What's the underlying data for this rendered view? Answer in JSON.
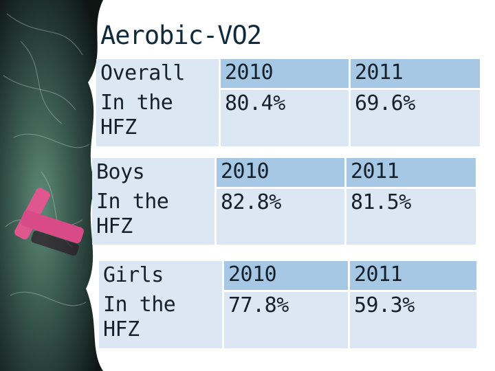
{
  "title": "Aerobic-VO2",
  "tables": [
    {
      "category": "Overall",
      "qualifier_line1": "In the",
      "qualifier_line2": "HFZ",
      "year1": "2010",
      "value1": "80.4%",
      "year2": "2011",
      "value2": "69.6%"
    },
    {
      "category": "Boys",
      "qualifier_line1": "In the",
      "qualifier_line2": "HFZ",
      "year1": "2010",
      "value1": "82.8%",
      "year2": "2011",
      "value2": "81.5%"
    },
    {
      "category": "Girls",
      "qualifier_line1": "In the",
      "qualifier_line2": "HFZ",
      "year1": "2010",
      "value1": "77.8%",
      "year2": "2011",
      "value2": "59.3%"
    }
  ],
  "colors": {
    "header_fill": "#a6c8e4",
    "body_fill": "#dbe7f2",
    "text": "#16202a"
  }
}
